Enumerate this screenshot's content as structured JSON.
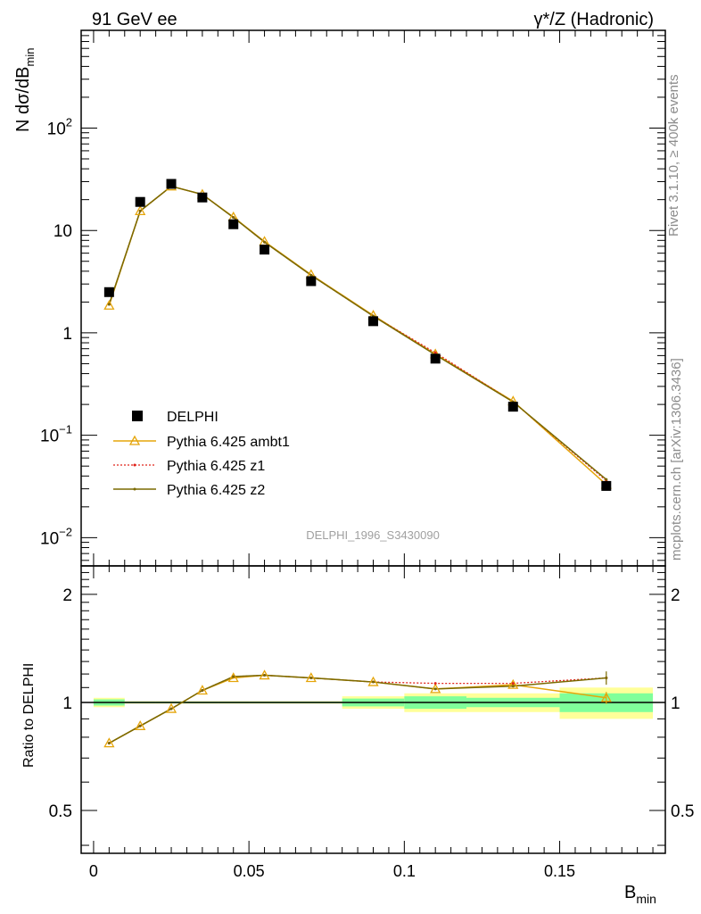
{
  "header": {
    "left": "91 GeV ee",
    "right_sym": "γ*/Z",
    "right_text": " (Hadronic)"
  },
  "side_text": {
    "rivet": "Rivet 3.1.10, ≥ 400k events",
    "mcplots": "mcplots.cern.ch [arXiv:1306.3436]"
  },
  "watermark": "DELPHI_1996_S3430090",
  "colors": {
    "data": "#000000",
    "ambt1": "#e5a50a",
    "z1": "#e0241b",
    "z2": "#7a6a00",
    "band_inner": "#80ff9a",
    "band_outer": "#ffff99"
  },
  "chart_data": [
    {
      "type": "scatter",
      "title": "",
      "xlabel": "B_min",
      "ylabel": "N dσ/dB_min",
      "ylog": true,
      "xlim": [
        -0.004,
        0.184
      ],
      "ylim": [
        0.0053,
        900
      ],
      "x_ticks": [
        "0",
        "0.05",
        "0.1",
        "0.15"
      ],
      "y_ticks": [
        "10^-2",
        "10^-1",
        "1",
        "10",
        "10^2"
      ],
      "legend_position": "lower-left",
      "x": [
        0.005,
        0.015,
        0.025,
        0.035,
        0.045,
        0.055,
        0.07,
        0.09,
        0.11,
        0.135,
        0.165
      ],
      "series": [
        {
          "name": "DELPHI",
          "values": [
            2.5,
            19.0,
            28.5,
            21.0,
            11.5,
            6.5,
            3.2,
            1.3,
            0.56,
            0.19,
            0.032
          ]
        },
        {
          "name": "Pythia 6.425 ambt1",
          "values": [
            1.85,
            15.5,
            27.0,
            22.5,
            13.5,
            7.8,
            3.7,
            1.48,
            0.62,
            0.215,
            0.033
          ]
        },
        {
          "name": "Pythia 6.425 z1",
          "values": [
            1.9,
            15.5,
            27.0,
            22.5,
            13.4,
            7.7,
            3.65,
            1.46,
            0.64,
            0.212,
            0.036
          ]
        },
        {
          "name": "Pythia 6.425 z2",
          "values": [
            1.9,
            15.5,
            27.0,
            22.5,
            13.4,
            7.7,
            3.65,
            1.46,
            0.61,
            0.212,
            0.037
          ]
        }
      ]
    },
    {
      "type": "line",
      "xlabel": "B_min",
      "ylabel": "Ratio to DELPHI",
      "ylim": [
        0.38,
        2.4
      ],
      "y_ticks": [
        "0.5",
        "1",
        "2"
      ],
      "x": [
        0.005,
        0.015,
        0.025,
        0.035,
        0.045,
        0.055,
        0.07,
        0.09,
        0.11,
        0.135,
        0.165
      ],
      "bins": [
        [
          0,
          0.01
        ],
        [
          0.01,
          0.02
        ],
        [
          0.02,
          0.03
        ],
        [
          0.03,
          0.04
        ],
        [
          0.04,
          0.05
        ],
        [
          0.05,
          0.06
        ],
        [
          0.06,
          0.08
        ],
        [
          0.08,
          0.1
        ],
        [
          0.1,
          0.12
        ],
        [
          0.12,
          0.15
        ],
        [
          0.15,
          0.18
        ]
      ],
      "band_inner": [
        0.02,
        0.005,
        0.005,
        0.005,
        0.005,
        0.005,
        0.005,
        0.025,
        0.04,
        0.03,
        0.06
      ],
      "band_outer": [
        0.03,
        0.008,
        0.008,
        0.008,
        0.008,
        0.008,
        0.008,
        0.04,
        0.06,
        0.06,
        0.1
      ],
      "series": [
        {
          "name": "Pythia 6.425 ambt1",
          "values": [
            0.77,
            0.86,
            0.96,
            1.08,
            1.17,
            1.19,
            1.17,
            1.14,
            1.09,
            1.12,
            1.03
          ]
        },
        {
          "name": "Pythia 6.425 z1",
          "values": [
            0.77,
            0.86,
            0.96,
            1.08,
            1.18,
            1.19,
            1.17,
            1.14,
            1.13,
            1.13,
            1.17
          ]
        },
        {
          "name": "Pythia 6.425 z2",
          "values": [
            0.77,
            0.86,
            0.96,
            1.08,
            1.18,
            1.19,
            1.17,
            1.14,
            1.09,
            1.11,
            1.17
          ]
        }
      ]
    }
  ]
}
